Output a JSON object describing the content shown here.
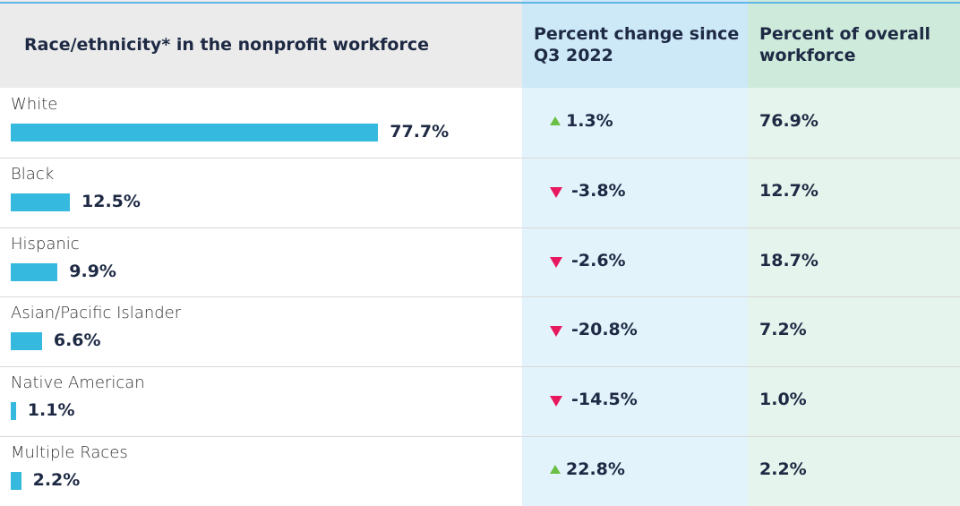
{
  "chart_data": {
    "type": "bar-table",
    "columns": [
      "Race/ethnicity* in the nonprofit workforce",
      "Percent change since Q3 2022",
      "Percent of overall workforce"
    ],
    "categories": [
      "White",
      "Black",
      "Hispanic",
      "Asian/Pacific Islander",
      "Native American",
      "Multiple Races"
    ],
    "values": [
      77.7,
      12.5,
      9.9,
      6.6,
      1.1,
      2.2
    ],
    "value_labels": [
      "77.7%",
      "12.5%",
      "9.9%",
      "6.6%",
      "1.1%",
      "2.2%"
    ],
    "change": [
      1.3,
      -3.8,
      -2.6,
      -20.8,
      -14.5,
      22.8
    ],
    "change_labels": [
      "1.3%",
      "-3.8%",
      "-2.6%",
      "-20.8%",
      "-14.5%",
      "22.8%"
    ],
    "share": [
      76.9,
      12.7,
      18.7,
      7.2,
      1.0,
      2.2
    ],
    "share_labels": [
      "76.9%",
      "12.7%",
      "18.7%",
      "7.2%",
      "1.0%",
      "2.2%"
    ],
    "color": "#36b9df",
    "up_color": "#6cbf45",
    "down_color": "#e8185f"
  }
}
